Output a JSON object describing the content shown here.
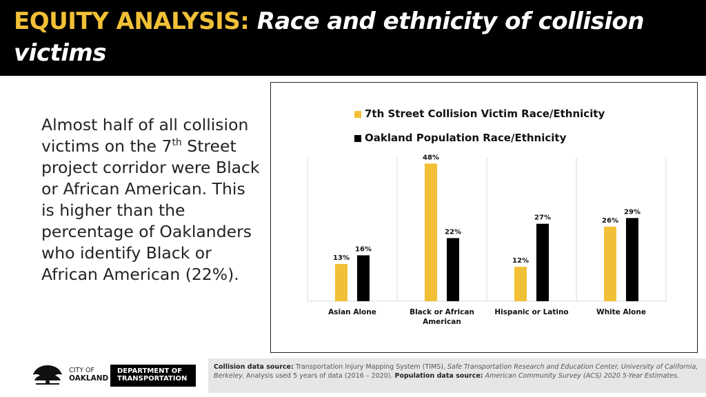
{
  "header": {
    "title_lead": "EQUITY ANALYSIS:",
    "title_rest": "Race and ethnicity of collision victims",
    "background": "#000000",
    "accent": "#f2c037"
  },
  "body": {
    "text_part1": "Almost half of all collision victims on the 7",
    "text_sup": "th",
    "text_part2": " Street project corridor were Black or African American. This is higher than the percentage of Oaklanders who identify Black or African American (22%)."
  },
  "chart_data": {
    "type": "bar",
    "categories": [
      "Asian Alone",
      "Black or African American",
      "Hispanic or Latino",
      "White Alone"
    ],
    "series": [
      {
        "name": "7th Street Collision Victim Race/Ethnicity",
        "values": [
          13,
          48,
          12,
          26
        ],
        "color": "#f2c037"
      },
      {
        "name": "Oakland Population Race/Ethnicity",
        "values": [
          16,
          22,
          27,
          29
        ],
        "color": "#000000"
      }
    ],
    "value_suffix": "%",
    "title": "",
    "xlabel": "",
    "ylabel": "",
    "ylim": [
      0,
      50
    ],
    "legend_position": "top-left",
    "grid": false
  },
  "footer": {
    "logo_city": "CITY OF",
    "logo_name": "OAKLAND",
    "dept_line1": "DEPARTMENT OF",
    "dept_line2": "TRANSPORTATION",
    "source_label_1": "Collision data source:",
    "source_text_1": "Transportation Injury Mapping System (TIMS),",
    "source_italic_1": "Safe Transportation Research and Education Center, University of California, Berkeley.",
    "source_text_2": "Analysis used 5 years of data (2016 – 2020).",
    "source_label_2": "Population data source:",
    "source_italic_2": "American Community Survey (ACS) 2020 5-Year Estimates."
  }
}
